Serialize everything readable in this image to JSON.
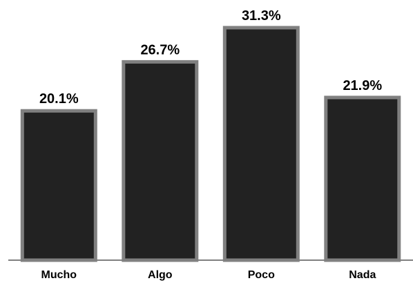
{
  "chart_data": {
    "type": "bar",
    "categories": [
      "Mucho",
      "Algo",
      "Poco",
      "Nada"
    ],
    "values": [
      20.1,
      26.7,
      31.3,
      21.9
    ],
    "data_labels": [
      "20.1%",
      "26.7%",
      "31.3%",
      "21.9%"
    ],
    "title": "",
    "xlabel": "",
    "ylabel": "",
    "ylim": [
      0,
      34
    ],
    "grid": false,
    "legend": "none"
  },
  "colors": {
    "bar_fill": "#222222",
    "bar_border": "#808080",
    "axis": "#808080",
    "text": "#000000",
    "background": "#ffffff"
  }
}
